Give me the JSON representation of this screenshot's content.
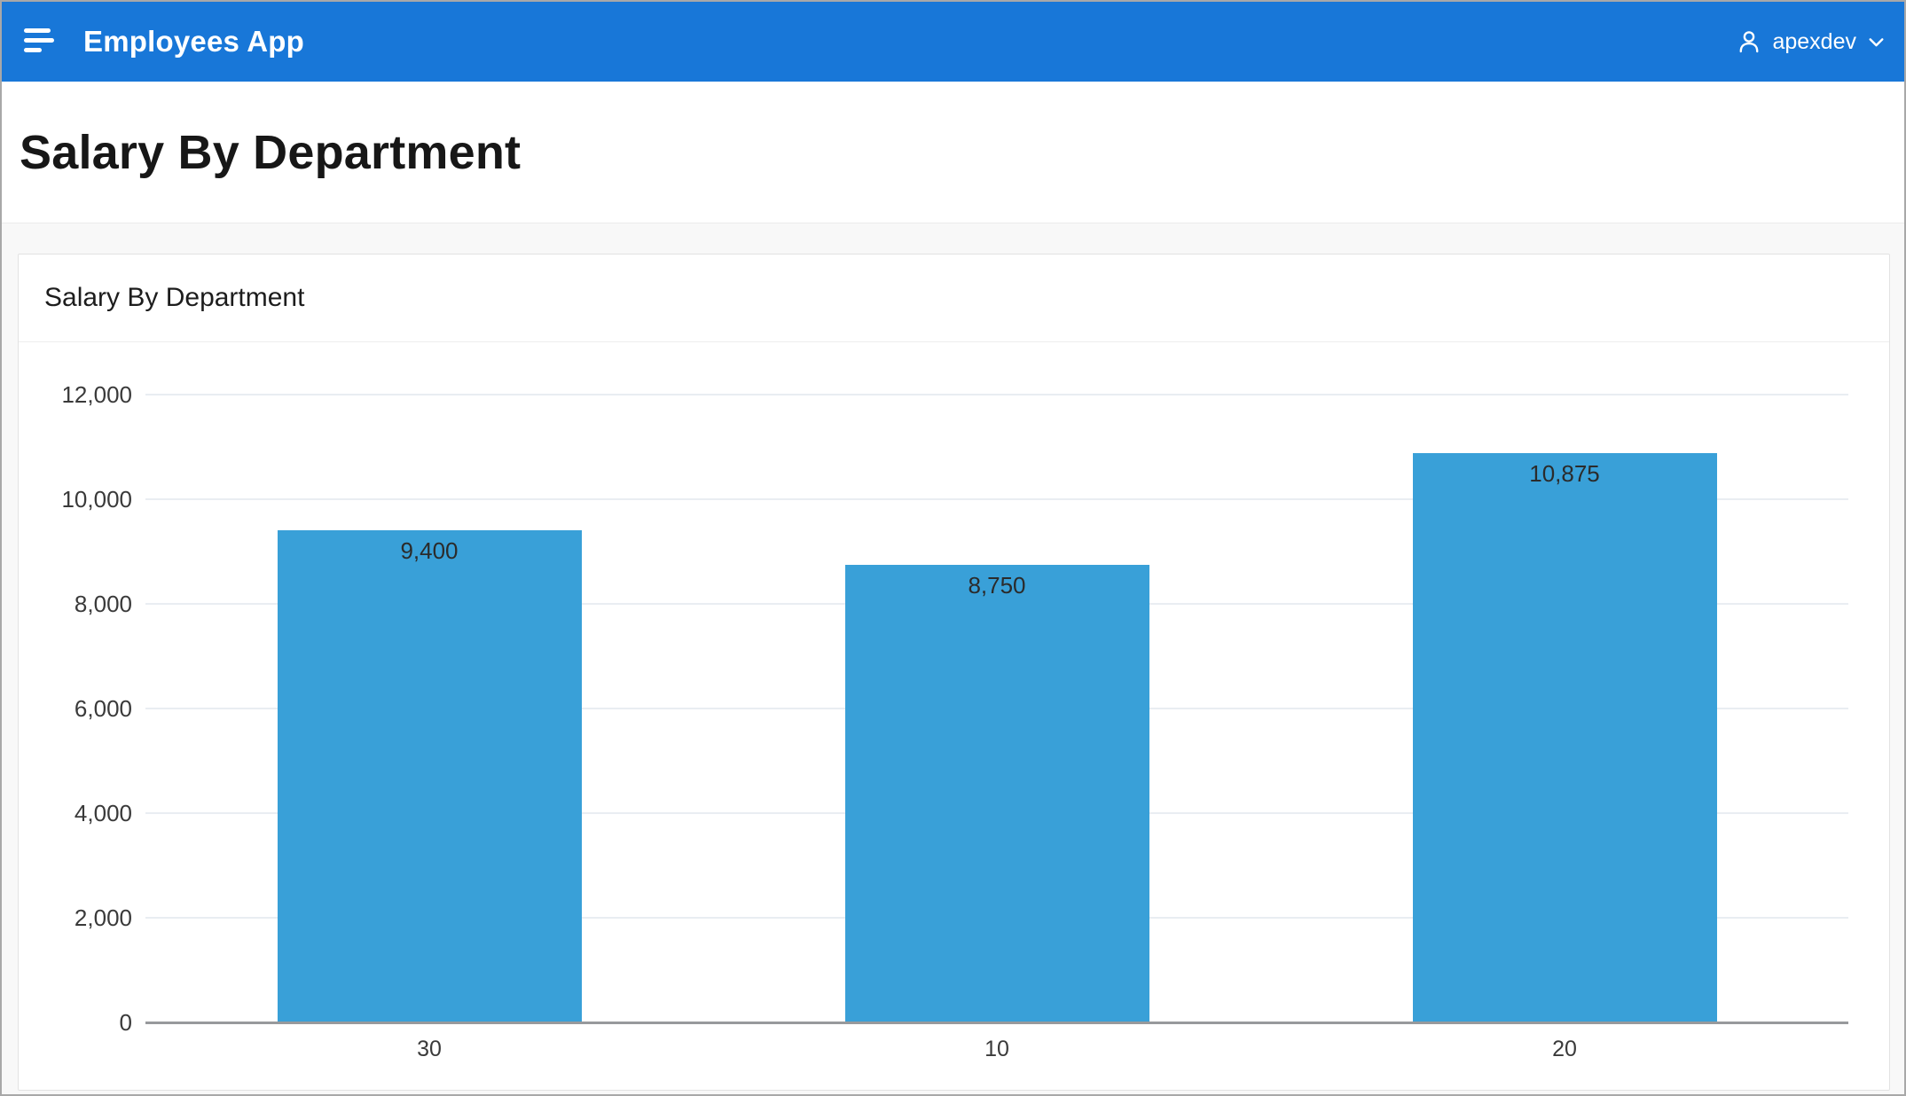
{
  "header": {
    "app_title": "Employees App",
    "user_name": "apexdev"
  },
  "page": {
    "title": "Salary By Department"
  },
  "region": {
    "title": "Salary By Department"
  },
  "chart_data": {
    "type": "bar",
    "title": "Salary By Department",
    "categories": [
      "30",
      "10",
      "20"
    ],
    "values": [
      9400,
      8750,
      10875
    ],
    "value_labels": [
      "9,400",
      "8,750",
      "10,875"
    ],
    "xlabel": "",
    "ylabel": "",
    "ylim": [
      0,
      12000
    ],
    "ytick_step": 2000,
    "ytick_labels": [
      "0",
      "2,000",
      "4,000",
      "6,000",
      "8,000",
      "10,000",
      "12,000"
    ],
    "grid": true,
    "legend": "none",
    "bar_color": "#39A0D8"
  },
  "colors": {
    "header_bg": "#1877D8",
    "bar": "#39A0D8",
    "gridline": "#E9EDF2",
    "axis_line": "#97999C"
  }
}
